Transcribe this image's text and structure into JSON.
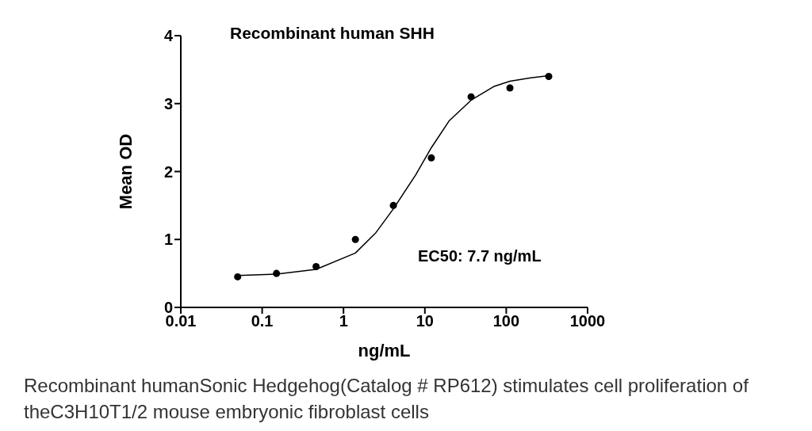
{
  "chart_data": {
    "type": "scatter",
    "title": "Recombinant human SHH",
    "xlabel": "ng/mL",
    "ylabel": "Mean OD",
    "log": "x",
    "xlim": [
      0.01,
      1000
    ],
    "xticks": [
      0.01,
      0.1,
      1,
      10,
      100,
      1000
    ],
    "ylim": [
      0,
      4
    ],
    "yticks": [
      0,
      1,
      2,
      3,
      4
    ],
    "marker": "circle",
    "series": [
      {
        "color": "#000000",
        "x": [
          0.05,
          0.15,
          0.46,
          1.4,
          4.1,
          12,
          37,
          111,
          333
        ],
        "values": [
          0.45,
          0.5,
          0.6,
          1.0,
          1.5,
          2.2,
          3.1,
          3.23,
          3.4
        ]
      },
      {
        "type": "line",
        "color": "#000000",
        "marker": "none",
        "line_style": "solid",
        "x": [
          0.05,
          0.15,
          0.46,
          1.4,
          2.5,
          4.1,
          7.7,
          12,
          20,
          37,
          70,
          111,
          200,
          333
        ],
        "values": [
          0.47,
          0.49,
          0.56,
          0.8,
          1.1,
          1.45,
          1.95,
          2.35,
          2.75,
          3.05,
          3.25,
          3.33,
          3.38,
          3.41
        ]
      }
    ],
    "annotations": [
      "EC50: 7.7 ng/mL",
      "Recombinant humanSonic Hedgehog(Catalog # RP612) stimulates cell proliferation of theC3H10T1/2 mouse embryonic fibroblast cells"
    ]
  }
}
